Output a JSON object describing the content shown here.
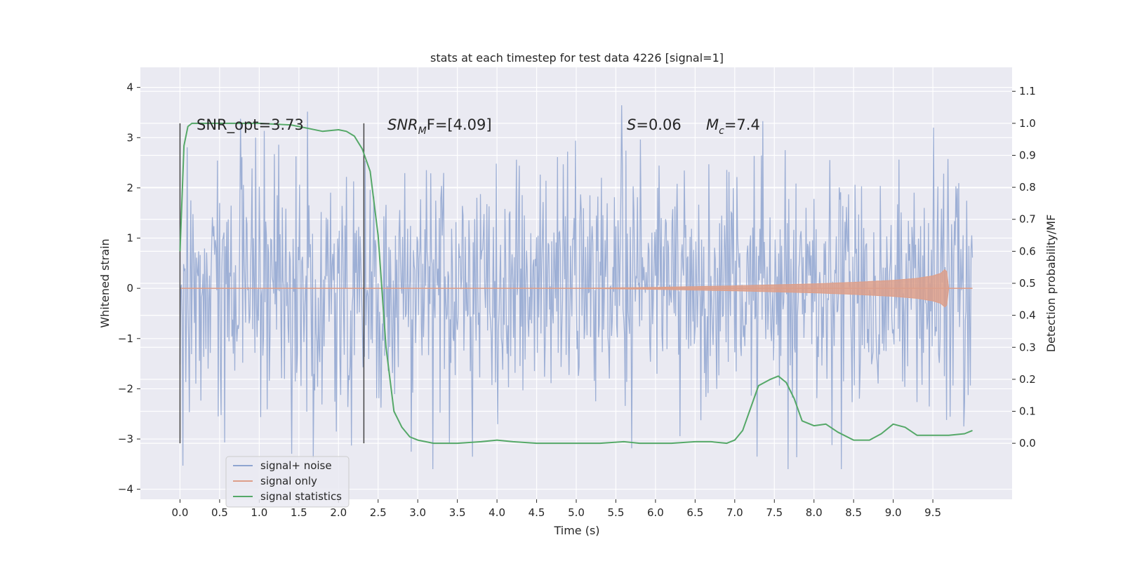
{
  "chart_data": {
    "type": "line",
    "title": "stats at each timestep for test data 4226 [signal=1]",
    "xlabel": "Time (s)",
    "ylabel": "Whitened strain",
    "y2label": "Detection probability/MF",
    "xlim": [
      -0.5,
      10.5
    ],
    "ylim": [
      -4.2,
      4.4
    ],
    "y2lim": [
      -0.175,
      1.175
    ],
    "xticks": [
      "0.0",
      "0.5",
      "1.0",
      "1.5",
      "2.0",
      "2.5",
      "3.0",
      "3.5",
      "4.0",
      "4.5",
      "5.0",
      "5.5",
      "6.0",
      "6.5",
      "7.0",
      "7.5",
      "8.0",
      "8.5",
      "9.0",
      "9.5"
    ],
    "yticks": [
      "4",
      "3",
      "2",
      "1",
      "0",
      "−1",
      "−2",
      "−3",
      "−4"
    ],
    "y2ticks": [
      "1.1",
      "1.0",
      "0.9",
      "0.8",
      "0.7",
      "0.6",
      "0.5",
      "0.4",
      "0.3",
      "0.2",
      "0.1",
      "0.0"
    ],
    "grid": true,
    "legend_position": "lower-left",
    "annotations": {
      "snr_opt": "SNR_opt=3.73",
      "snr_mf_base": "SNR",
      "snr_mf_sub": "M",
      "snr_mf_rest": "F=[4.09]",
      "s_label": "S",
      "s_value": "=0.06",
      "mc_base": "M",
      "mc_sub": "c",
      "mc_value": "=7.4"
    },
    "vertical_markers": [
      0.0,
      2.32
    ],
    "series": [
      {
        "name": "signal+ noise",
        "color": "#8fa5d0",
        "description_values": "whitened noise, roughly uniform envelope between about -2.3 and 2.4 with spikes",
        "x_range": [
          0.0,
          10.0
        ],
        "envelope_abs": 2.3
      },
      {
        "name": "signal only",
        "color": "#dd9f8a",
        "x": [
          0.0,
          5.0,
          6.0,
          7.0,
          8.0,
          8.5,
          9.0,
          9.3,
          9.5,
          9.6,
          9.67,
          9.7,
          10.0
        ],
        "amplitude": [
          0.0,
          0.0,
          0.02,
          0.05,
          0.09,
          0.12,
          0.16,
          0.2,
          0.25,
          0.3,
          0.4,
          0.0,
          0.0
        ]
      },
      {
        "name": "signal statistics",
        "color": "#55a868",
        "x": [
          0.0,
          0.05,
          0.1,
          0.15,
          0.2,
          0.3,
          0.5,
          1.0,
          1.4,
          1.6,
          1.8,
          2.0,
          2.1,
          2.2,
          2.3,
          2.4,
          2.5,
          2.6,
          2.7,
          2.8,
          2.9,
          3.0,
          3.2,
          3.5,
          3.8,
          4.0,
          4.2,
          4.5,
          5.0,
          5.3,
          5.6,
          5.8,
          6.2,
          6.5,
          6.7,
          6.9,
          7.0,
          7.1,
          7.2,
          7.3,
          7.45,
          7.55,
          7.65,
          7.75,
          7.85,
          8.0,
          8.15,
          8.3,
          8.5,
          8.7,
          8.85,
          9.0,
          9.15,
          9.3,
          9.5,
          9.7,
          9.9,
          10.0
        ],
        "values": [
          0.6,
          0.93,
          0.99,
          1.0,
          1.0,
          1.0,
          1.0,
          1.0,
          0.995,
          0.985,
          0.975,
          0.98,
          0.975,
          0.96,
          0.92,
          0.85,
          0.65,
          0.3,
          0.1,
          0.05,
          0.02,
          0.01,
          0.0,
          0.0,
          0.005,
          0.01,
          0.005,
          0.0,
          0.0,
          0.0,
          0.005,
          0.0,
          0.0,
          0.005,
          0.005,
          0.0,
          0.01,
          0.04,
          0.11,
          0.18,
          0.2,
          0.21,
          0.19,
          0.14,
          0.07,
          0.055,
          0.06,
          0.035,
          0.01,
          0.01,
          0.03,
          0.06,
          0.05,
          0.025,
          0.025,
          0.025,
          0.03,
          0.04
        ]
      }
    ]
  }
}
